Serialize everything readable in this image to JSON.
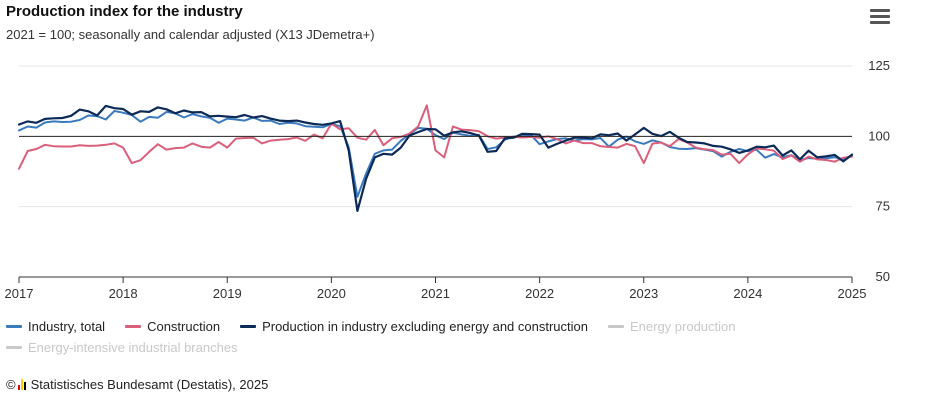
{
  "title": "Production index for the industry",
  "subtitle": "2021 = 100; seasonally and calendar adjusted (X13 JDemetra+)",
  "menu_icon": "hamburger-menu-icon",
  "source": {
    "copyright": "©",
    "text": "Statistisches Bundesamt (Destatis), 2025",
    "icon_colors": [
      "#e30613",
      "#ffcc00",
      "#000000"
    ]
  },
  "legend": [
    {
      "name": "Industry, total",
      "color": "#3a7abf",
      "active": true
    },
    {
      "name": "Construction",
      "color": "#d95f7a",
      "active": true
    },
    {
      "name": "Production in industry excluding energy and construction",
      "color": "#0c2a57",
      "active": true
    },
    {
      "name": "Energy production",
      "color": "#c8c8c8",
      "active": false
    },
    {
      "name": "Energy-intensive industrial branches",
      "color": "#c8c8c8",
      "active": false
    }
  ],
  "chart_data": {
    "type": "line",
    "title": "Production index for the industry",
    "subtitle": "2021 = 100; seasonally and calendar adjusted (X13 JDemetra+)",
    "x_ticks": [
      "2017",
      "2018",
      "2019",
      "2020",
      "2021",
      "2022",
      "2023",
      "2024",
      "2025"
    ],
    "y_ticks": [
      50,
      75,
      100,
      125
    ],
    "ylim": [
      50,
      125
    ],
    "xlim": [
      "2017-01",
      "2025-01"
    ],
    "reference_line": 100,
    "grid": "horizontal",
    "y_axis_side": "right",
    "legend_position": "bottom",
    "x_start": "2017-01",
    "frequency": "monthly",
    "series": [
      {
        "name": "Industry, total",
        "color": "#3a7abf",
        "values": [
          102.1,
          103.5,
          103.1,
          104.9,
          105.3,
          105.1,
          105.2,
          105.8,
          107.4,
          107.2,
          106.0,
          109.0,
          108.4,
          107.6,
          105.2,
          106.9,
          106.6,
          108.7,
          108.2,
          106.7,
          107.9,
          107.1,
          106.6,
          104.8,
          106.3,
          106.0,
          105.6,
          106.7,
          105.5,
          105.6,
          104.4,
          104.8,
          104.6,
          103.6,
          103.4,
          103.2,
          104.4,
          103.6,
          96.2,
          78.5,
          86.8,
          93.8,
          95.0,
          95.3,
          98.4,
          100.8,
          103.0,
          102.7,
          100.4,
          99.0,
          101.3,
          100.7,
          100.2,
          100.5,
          95.5,
          96.1,
          98.8,
          99.9,
          100.1,
          100.5,
          97.2,
          98.2,
          99.0,
          99.3,
          98.5,
          99.0,
          98.9,
          99.4,
          96.3,
          98.8,
          99.9,
          98.2,
          97.3,
          98.6,
          97.8,
          96.2,
          95.6,
          95.5,
          95.8,
          95.3,
          94.7,
          92.8,
          94.5,
          95.5,
          94.7,
          95.2,
          92.4,
          93.7,
          92.5,
          93.3,
          91.6,
          92.3,
          92.0,
          92.2,
          92.6,
          91.9,
          93.1
        ]
      },
      {
        "name": "Construction",
        "color": "#d95f7a",
        "values": [
          88.5,
          94.8,
          95.5,
          97.0,
          96.5,
          96.4,
          96.4,
          96.8,
          96.6,
          96.7,
          97.0,
          97.5,
          96.0,
          90.5,
          91.5,
          94.5,
          97.2,
          95.3,
          95.8,
          96.0,
          97.5,
          96.3,
          96.0,
          98.0,
          96.0,
          99.2,
          99.4,
          99.5,
          97.5,
          98.5,
          98.8,
          99.0,
          99.6,
          98.4,
          100.6,
          99.3,
          104.5,
          102.5,
          102.9,
          99.5,
          98.8,
          102.3,
          96.8,
          99.3,
          99.8,
          101.0,
          103.5,
          111.0,
          95.0,
          92.5,
          103.5,
          102.4,
          102.2,
          101.8,
          100.0,
          99.2,
          99.6,
          99.8,
          99.6,
          99.8,
          99.5,
          100.0,
          99.0,
          97.5,
          98.5,
          97.6,
          97.6,
          96.5,
          96.2,
          96.0,
          97.3,
          96.5,
          90.5,
          97.4,
          97.8,
          96.5,
          99.0,
          97.8,
          96.0,
          95.4,
          95.1,
          93.5,
          93.8,
          90.5,
          93.6,
          95.7,
          95.4,
          94.9,
          91.9,
          93.2,
          91.0,
          92.8,
          91.8,
          91.6,
          91.0,
          92.4,
          92.8
        ]
      },
      {
        "name": "Production in industry excluding energy and construction",
        "color": "#0c2a57",
        "values": [
          104.2,
          105.3,
          104.8,
          106.2,
          106.4,
          106.5,
          107.3,
          109.5,
          108.9,
          107.4,
          110.8,
          110.0,
          109.7,
          107.7,
          108.9,
          108.7,
          110.3,
          109.6,
          108.2,
          109.2,
          108.5,
          108.6,
          107.1,
          107.3,
          107.0,
          106.8,
          107.6,
          106.7,
          107.2,
          106.3,
          105.6,
          105.4,
          105.6,
          104.9,
          104.4,
          104.1,
          104.6,
          105.4,
          95.0,
          73.5,
          84.9,
          92.5,
          93.8,
          93.5,
          96.0,
          100.3,
          101.5,
          102.6,
          102.5,
          100.2,
          101.4,
          101.8,
          101.2,
          100.3,
          94.5,
          94.8,
          99.3,
          99.5,
          100.9,
          100.8,
          100.6,
          96.0,
          97.3,
          98.5,
          99.5,
          99.5,
          99.3,
          100.7,
          100.4,
          101.0,
          98.5,
          100.7,
          103.0,
          100.9,
          100.1,
          101.6,
          99.5,
          98.0,
          97.8,
          97.5,
          96.6,
          96.3,
          95.4,
          94.1,
          95.0,
          96.3,
          96.1,
          96.7,
          93.2,
          95.0,
          91.8,
          94.9,
          92.5,
          92.9,
          93.4,
          91.1,
          93.5
        ]
      }
    ]
  }
}
